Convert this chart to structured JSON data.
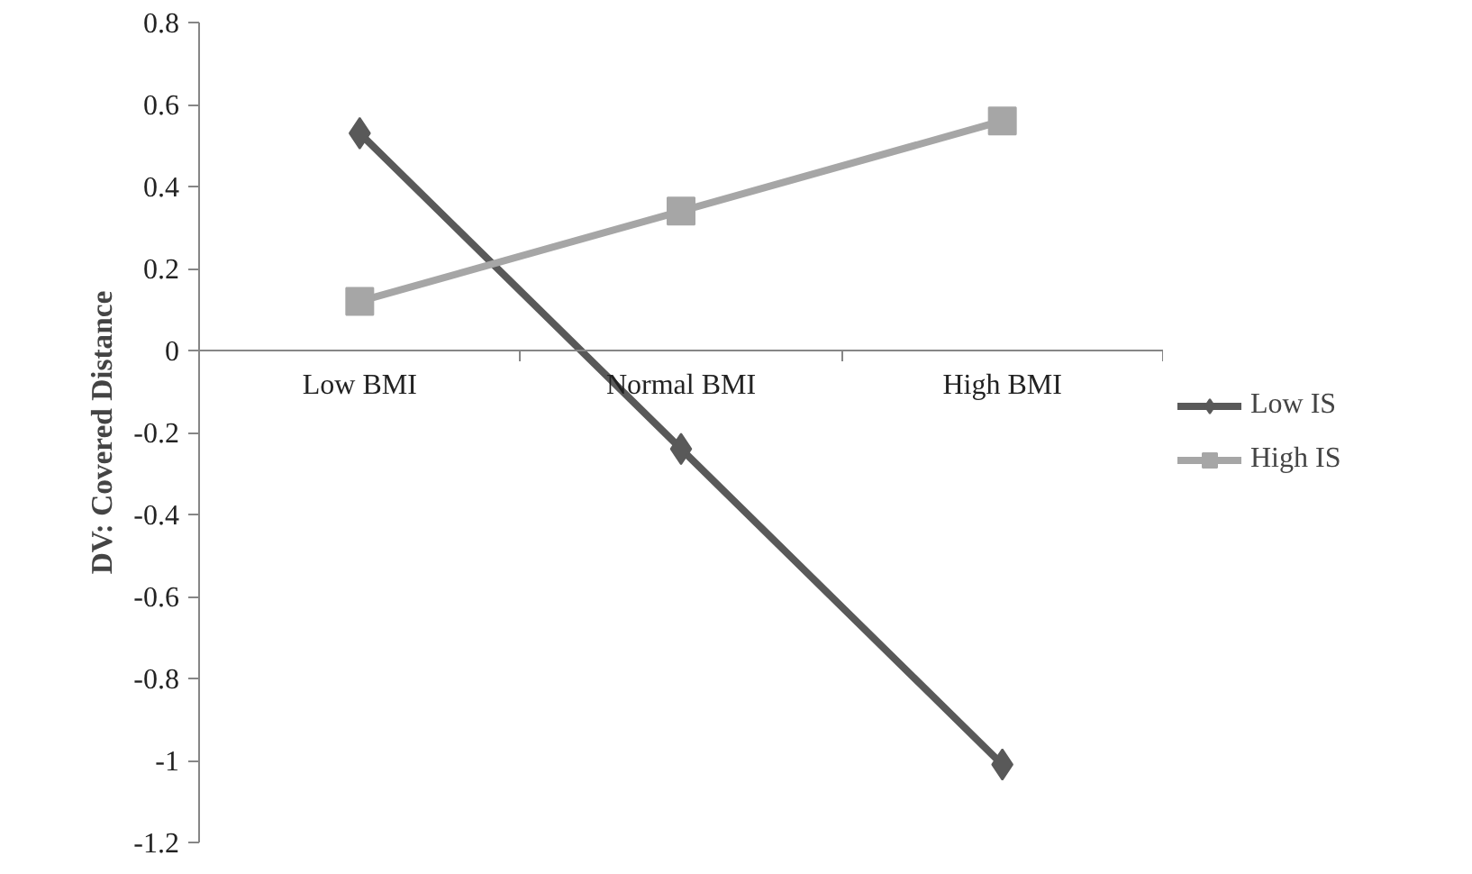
{
  "chart_data": {
    "type": "line",
    "ylabel": "DV: Covered Distance",
    "categories": [
      "Low BMI",
      "Normal BMI",
      "High BMI"
    ],
    "series": [
      {
        "name": "Low IS",
        "color": "#595959",
        "marker": "diamond",
        "values": [
          0.53,
          -0.24,
          -1.01
        ]
      },
      {
        "name": "High IS",
        "color": "#a6a6a6",
        "marker": "square",
        "values": [
          0.12,
          0.34,
          0.56
        ]
      }
    ],
    "ylim": [
      -1.2,
      0.8
    ],
    "yticks": [
      -1.2,
      -1,
      -0.8,
      -0.6,
      -0.4,
      -0.2,
      0,
      0.2,
      0.4,
      0.6,
      0.8
    ],
    "grid": false,
    "legend": "right",
    "line_style": "solid"
  }
}
